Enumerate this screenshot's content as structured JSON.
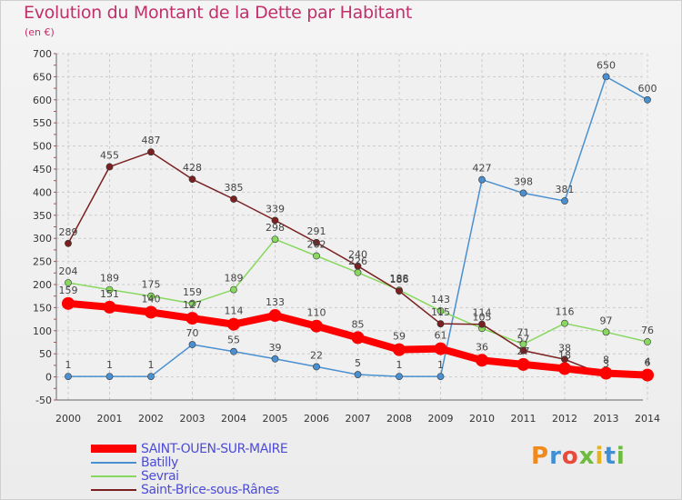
{
  "header": {
    "title": "Evolution du Montant de la Dette par Habitant",
    "subtitle": "(en €)"
  },
  "logo": {
    "text": "Proxiti",
    "colors": [
      "#f08a1c",
      "#3f8fd6",
      "#e84b3a",
      "#6dbb3f",
      "#e8b11a",
      "#3f8fd6",
      "#6dbb3f"
    ]
  },
  "chart_data": {
    "type": "line",
    "title": "Evolution du Montant de la Dette par Habitant",
    "subtitle": "(en €)",
    "x": [
      "2000",
      "2001",
      "2002",
      "2003",
      "2004",
      "2005",
      "2006",
      "2007",
      "2008",
      "2009",
      "2010",
      "2011",
      "2012",
      "2013",
      "2014"
    ],
    "ylim": [
      -50,
      700
    ],
    "yticks": [
      -50,
      0,
      50,
      100,
      150,
      200,
      250,
      300,
      350,
      400,
      450,
      500,
      550,
      600,
      650,
      700
    ],
    "grid": true,
    "legend_position": "bottom-left",
    "series": [
      {
        "name": "SAINT-OUEN-SUR-MAIRE",
        "color": "#ff0000",
        "values": [
          159,
          151,
          140,
          127,
          114,
          133,
          110,
          85,
          59,
          61,
          36,
          27,
          18,
          8,
          4
        ]
      },
      {
        "name": "Batilly",
        "color": "#4a90d0",
        "values": [
          1,
          1,
          1,
          70,
          55,
          39,
          22,
          5,
          1,
          1,
          427,
          398,
          381,
          650,
          600
        ]
      },
      {
        "name": "Sevrai",
        "color": "#88d860",
        "values": [
          204,
          189,
          175,
          159,
          189,
          298,
          262,
          226,
          188,
          143,
          105,
          71,
          116,
          97,
          76
        ]
      },
      {
        "name": "Saint-Brice-sous-Rânes",
        "color": "#7a2020",
        "values": [
          289,
          455,
          487,
          428,
          385,
          339,
          291,
          240,
          186,
          115,
          114,
          57,
          38,
          3,
          6
        ]
      }
    ],
    "data_labels": [
      [
        "159",
        "151",
        "140",
        "127",
        "114",
        "133",
        "110",
        "85",
        "59",
        "61",
        "36",
        "27",
        "18",
        "8",
        "4"
      ],
      [
        "1",
        "1",
        "1",
        "70",
        "55",
        "39",
        "22",
        "5",
        "1",
        "1",
        "427",
        "398",
        "381",
        "650",
        "600"
      ],
      [
        "204",
        "189",
        "175",
        "159",
        "189",
        "298",
        "262",
        "226",
        "188",
        "143",
        "105",
        "71",
        "116",
        "97",
        "76"
      ],
      [
        "289",
        "455",
        "487",
        "428",
        "385",
        "339",
        "291",
        "240",
        "186",
        "115",
        "114",
        "57",
        "38",
        "3",
        "6"
      ]
    ]
  }
}
